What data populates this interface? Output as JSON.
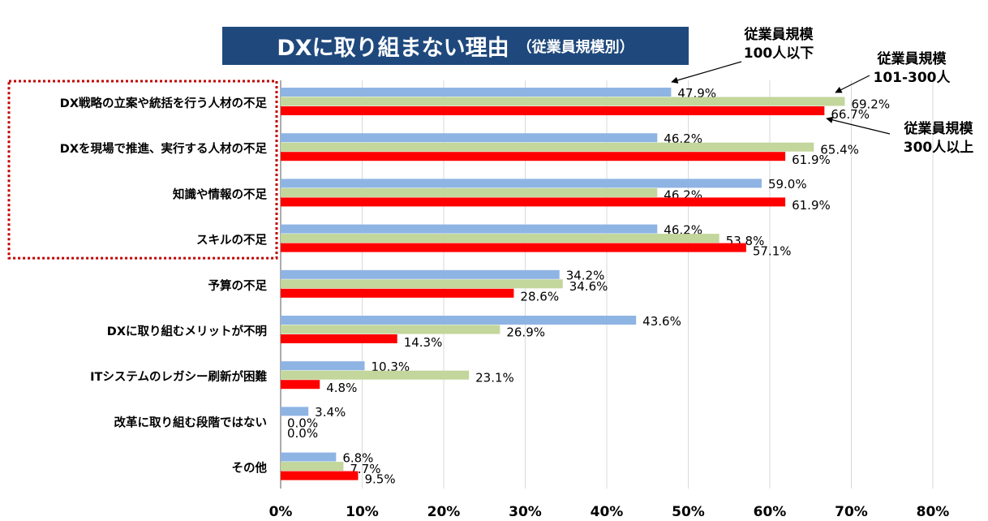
{
  "title": {
    "main": "DXに取り組まない理由",
    "sub": "（従業員規模別）"
  },
  "chart_data": {
    "type": "bar",
    "orientation": "horizontal",
    "title": "DXに取り組まない理由（従業員規模別）",
    "categories": [
      "DX戦略の立案や統括を行う人材の不足",
      "DXを現場で推進、実行する人材の不足",
      "知識や情報の不足",
      "スキルの不足",
      "予算の不足",
      "DXに取り組むメリットが不明",
      "ITシステムのレガシー刷新が困難",
      "改革に取り組む段階ではない",
      "その他"
    ],
    "series": [
      {
        "name_lines": [
          "従業員規模",
          "100人以下"
        ],
        "color": "#8eb4e3",
        "values": [
          47.9,
          46.2,
          59.0,
          46.2,
          34.2,
          43.6,
          10.3,
          3.4,
          6.8
        ],
        "labels": [
          "47.9%",
          "46.2%",
          "59.0%",
          "46.2%",
          "34.2%",
          "43.6%",
          "10.3%",
          "3.4%",
          "6.8%"
        ]
      },
      {
        "name_lines": [
          "従業員規模",
          "101-300人"
        ],
        "color": "#c3d69b",
        "values": [
          69.2,
          65.4,
          46.2,
          53.8,
          34.6,
          26.9,
          23.1,
          0.0,
          7.7
        ],
        "labels": [
          "69.2%",
          "65.4%",
          "46.2%",
          "53.8%",
          "34.6%",
          "26.9%",
          "23.1%",
          "0.0%",
          "7.7%"
        ]
      },
      {
        "name_lines": [
          "従業員規模",
          "300人以上"
        ],
        "color": "#ff0000",
        "values": [
          66.7,
          61.9,
          61.9,
          57.1,
          28.6,
          14.3,
          4.8,
          0.0,
          9.5
        ],
        "labels": [
          "66.7%",
          "61.9%",
          "61.9%",
          "57.1%",
          "28.6%",
          "14.3%",
          "4.8%",
          "0.0%",
          "9.5%"
        ]
      }
    ],
    "x_ticks": [
      "0%",
      "10%",
      "20%",
      "30%",
      "40%",
      "50%",
      "60%",
      "70%",
      "80%"
    ],
    "xlim": [
      0,
      80
    ],
    "grid": true,
    "highlight": {
      "categories_from": 0,
      "categories_to": 3,
      "style": "dotted-red-box"
    }
  },
  "colors": {
    "title_bg": "#1f497d",
    "grid": "#d9d9d9",
    "highlight": "#c00000"
  }
}
